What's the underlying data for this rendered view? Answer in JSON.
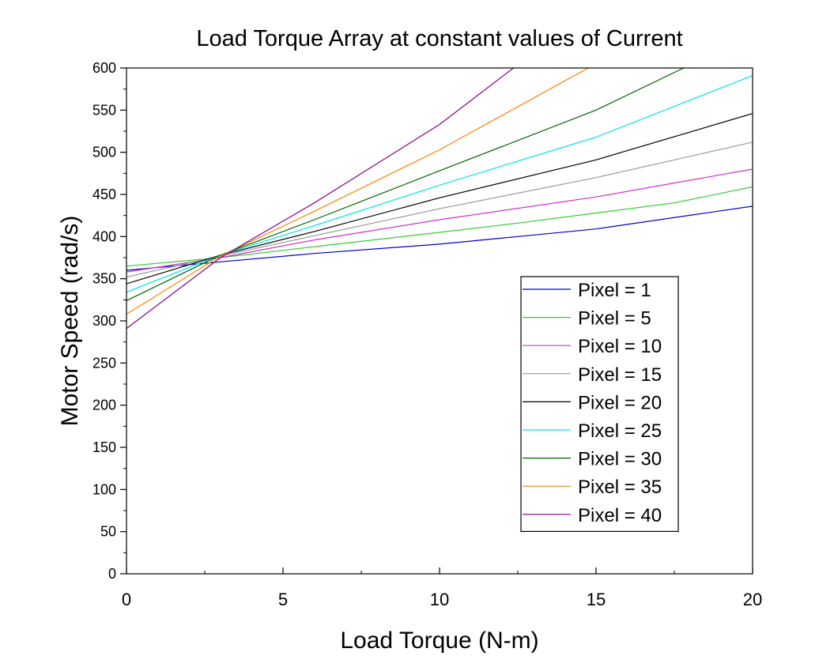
{
  "chart_data": {
    "type": "line",
    "title": "Load Torque Array at constant values of Current",
    "xlabel": "Load Torque (N-m)",
    "ylabel": "Motor Speed (rad/s)",
    "xlim": [
      0,
      20
    ],
    "ylim": [
      0,
      600
    ],
    "x_ticks": [
      0,
      5,
      10,
      15,
      20
    ],
    "y_ticks": [
      0,
      50,
      100,
      150,
      200,
      250,
      300,
      350,
      400,
      450,
      500,
      550,
      600
    ],
    "grid": false,
    "legend_position": "right",
    "series": [
      {
        "name": "Pixel = 1",
        "color": "#0000cc",
        "points": [
          [
            0,
            360
          ],
          [
            3,
            370
          ],
          [
            6,
            380
          ],
          [
            10,
            391
          ],
          [
            12.5,
            400
          ],
          [
            15,
            409
          ],
          [
            20,
            436
          ]
        ]
      },
      {
        "name": "Pixel = 5",
        "color": "#33cc33",
        "points": [
          [
            0,
            365
          ],
          [
            3,
            375
          ],
          [
            6,
            388
          ],
          [
            10,
            405
          ],
          [
            12.5,
            416
          ],
          [
            15,
            428
          ],
          [
            17.5,
            440
          ],
          [
            20,
            459
          ]
        ]
      },
      {
        "name": "Pixel = 10",
        "color": "#cc33cc",
        "points": [
          [
            0,
            358
          ],
          [
            3,
            375
          ],
          [
            6,
            396
          ],
          [
            10,
            420
          ],
          [
            15,
            447
          ],
          [
            20,
            480
          ]
        ]
      },
      {
        "name": "Pixel = 15",
        "color": "#999999",
        "points": [
          [
            0,
            352
          ],
          [
            3,
            377
          ],
          [
            6,
            401
          ],
          [
            10,
            433
          ],
          [
            15,
            470
          ],
          [
            20,
            512
          ]
        ]
      },
      {
        "name": "Pixel = 20",
        "color": "#000000",
        "points": [
          [
            0,
            344
          ],
          [
            3,
            378
          ],
          [
            6,
            406
          ],
          [
            10,
            446
          ],
          [
            15,
            491
          ],
          [
            20,
            546
          ]
        ]
      },
      {
        "name": "Pixel = 25",
        "color": "#00e5e5",
        "points": [
          [
            0,
            334
          ],
          [
            3,
            378
          ],
          [
            6,
            413
          ],
          [
            10,
            461
          ],
          [
            15,
            518
          ],
          [
            20,
            591
          ]
        ]
      },
      {
        "name": "Pixel = 30",
        "color": "#006600",
        "points": [
          [
            0,
            324
          ],
          [
            3,
            378
          ],
          [
            6,
            420
          ],
          [
            10,
            478
          ],
          [
            15,
            550
          ],
          [
            17.8,
            600
          ]
        ]
      },
      {
        "name": "Pixel = 35",
        "color": "#ff8000",
        "points": [
          [
            0,
            308
          ],
          [
            3,
            377
          ],
          [
            6,
            430
          ],
          [
            10,
            503
          ],
          [
            14.8,
            601
          ]
        ]
      },
      {
        "name": "Pixel = 40",
        "color": "#800080",
        "points": [
          [
            0,
            291
          ],
          [
            3,
            375
          ],
          [
            6,
            440
          ],
          [
            10,
            533
          ],
          [
            12.4,
            601
          ]
        ]
      }
    ]
  }
}
